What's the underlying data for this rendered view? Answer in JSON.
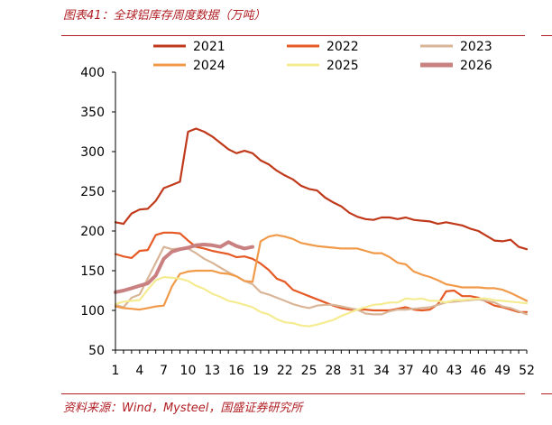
{
  "figure": {
    "title": "图表41：全球铝库存周度数据（万吨）",
    "source": "资料来源：Wind，Mysteel，国盛证券研究所"
  },
  "chart_data": {
    "type": "line",
    "title": "全球铝库存周度数据（万吨）",
    "xlabel": "",
    "ylabel": "",
    "ylim": [
      50,
      400
    ],
    "yticks": [
      50,
      100,
      150,
      200,
      250,
      300,
      350,
      400
    ],
    "xlim": [
      1,
      52
    ],
    "xtick_labels": [
      "1",
      "4",
      "7",
      "10",
      "13",
      "16",
      "19",
      "22",
      "25",
      "28",
      "31",
      "34",
      "37",
      "40",
      "43",
      "46",
      "49",
      "52"
    ],
    "grid": false,
    "legend_position": "top",
    "series": [
      {
        "name": "2021",
        "color": "#c0391b",
        "x": [
          1,
          2,
          3,
          4,
          5,
          6,
          7,
          8,
          9,
          10,
          11,
          12,
          13,
          14,
          15,
          16,
          17,
          18,
          19,
          20,
          21,
          22,
          23,
          24,
          25,
          26,
          27,
          28,
          29,
          30,
          31,
          32,
          33,
          34,
          35,
          36,
          37,
          38,
          39,
          40,
          41,
          42,
          43,
          44,
          45,
          46,
          47,
          48,
          49,
          50,
          51,
          52
        ],
        "values": [
          211,
          209,
          222,
          227,
          228,
          238,
          254,
          258,
          262,
          325,
          329,
          325,
          319,
          311,
          303,
          298,
          301,
          298,
          289,
          284,
          276,
          270,
          265,
          257,
          253,
          251,
          242,
          236,
          231,
          223,
          218,
          215,
          214,
          217,
          217,
          215,
          217,
          214,
          213,
          212,
          209,
          211,
          209,
          207,
          203,
          200,
          194,
          188,
          187,
          189,
          180,
          177
        ]
      },
      {
        "name": "2022",
        "color": "#e55a25",
        "x": [
          1,
          2,
          3,
          4,
          5,
          6,
          7,
          8,
          9,
          10,
          11,
          12,
          13,
          14,
          15,
          16,
          17,
          18,
          19,
          20,
          21,
          22,
          23,
          24,
          25,
          26,
          27,
          28,
          29,
          30,
          31,
          32,
          33,
          34,
          35,
          36,
          37,
          38,
          39,
          40,
          41,
          42,
          43,
          44,
          45,
          46,
          47,
          48,
          49,
          50,
          51,
          52
        ],
        "values": [
          171,
          168,
          166,
          175,
          176,
          195,
          198,
          198,
          197,
          188,
          180,
          178,
          175,
          173,
          171,
          167,
          168,
          165,
          159,
          151,
          140,
          136,
          126,
          122,
          118,
          114,
          110,
          106,
          103,
          101,
          101,
          101,
          100,
          100,
          100,
          102,
          104,
          101,
          100,
          101,
          108,
          124,
          125,
          118,
          118,
          116,
          111,
          106,
          104,
          101,
          98,
          98
        ]
      },
      {
        "name": "2023",
        "color": "#d9b598",
        "x": [
          1,
          2,
          3,
          4,
          5,
          6,
          7,
          8,
          9,
          10,
          11,
          12,
          13,
          14,
          15,
          16,
          17,
          18,
          19,
          20,
          21,
          22,
          23,
          24,
          25,
          26,
          27,
          28,
          29,
          30,
          31,
          32,
          33,
          34,
          35,
          36,
          37,
          38,
          39,
          40,
          41,
          42,
          43,
          44,
          45,
          46,
          47,
          48,
          49,
          50,
          51,
          52
        ],
        "values": [
          107,
          104,
          116,
          120,
          140,
          160,
          180,
          177,
          178,
          178,
          172,
          165,
          160,
          154,
          148,
          143,
          137,
          133,
          123,
          120,
          116,
          112,
          108,
          105,
          103,
          106,
          107,
          107,
          105,
          103,
          101,
          96,
          95,
          95,
          99,
          101,
          101,
          102,
          103,
          104,
          107,
          110,
          111,
          112,
          113,
          114,
          112,
          110,
          105,
          103,
          99,
          95
        ]
      },
      {
        "name": "2024",
        "color": "#f09a4a",
        "x": [
          1,
          2,
          3,
          4,
          5,
          6,
          7,
          8,
          9,
          10,
          11,
          12,
          13,
          14,
          15,
          16,
          17,
          18,
          19,
          20,
          21,
          22,
          23,
          24,
          25,
          26,
          27,
          28,
          29,
          30,
          31,
          32,
          33,
          34,
          35,
          36,
          37,
          38,
          39,
          40,
          41,
          42,
          43,
          44,
          45,
          46,
          47,
          48,
          49,
          50,
          51,
          52
        ],
        "values": [
          105,
          103,
          102,
          101,
          103,
          105,
          106,
          130,
          146,
          149,
          150,
          150,
          150,
          147,
          146,
          143,
          137,
          136,
          187,
          193,
          195,
          193,
          190,
          185,
          183,
          181,
          180,
          179,
          178,
          178,
          178,
          175,
          172,
          172,
          167,
          160,
          158,
          149,
          145,
          142,
          138,
          133,
          131,
          129,
          129,
          129,
          128,
          128,
          126,
          122,
          117,
          112
        ]
      },
      {
        "name": "2025",
        "color": "#f5ec92",
        "x": [
          1,
          2,
          3,
          4,
          5,
          6,
          7,
          8,
          9,
          10,
          11,
          12,
          13,
          14,
          15,
          16,
          17,
          18,
          19,
          20,
          21,
          22,
          23,
          24,
          25,
          26,
          27,
          28,
          29,
          30,
          31,
          32,
          33,
          34,
          35,
          36,
          37,
          38,
          39,
          40,
          41,
          42,
          43,
          44,
          45,
          46,
          47,
          48,
          49,
          50,
          51,
          52
        ],
        "values": [
          108,
          111,
          112,
          113,
          126,
          138,
          142,
          141,
          140,
          137,
          131,
          127,
          121,
          117,
          112,
          110,
          107,
          104,
          98,
          95,
          89,
          85,
          84,
          81,
          80,
          82,
          85,
          88,
          93,
          97,
          101,
          104,
          107,
          108,
          110,
          110,
          115,
          114,
          115,
          112,
          112,
          110,
          113,
          113,
          114,
          115,
          115,
          113,
          112,
          111,
          110,
          109
        ]
      },
      {
        "name": "2026",
        "color": "#c98080",
        "x": [
          1,
          2,
          3,
          4,
          5,
          6,
          7,
          8,
          9,
          10,
          11,
          12,
          13,
          14,
          15,
          16,
          17,
          18
        ],
        "values": [
          123,
          125,
          128,
          131,
          134,
          144,
          165,
          174,
          177,
          179,
          182,
          183,
          182,
          180,
          186,
          181,
          178,
          180
        ]
      }
    ]
  }
}
